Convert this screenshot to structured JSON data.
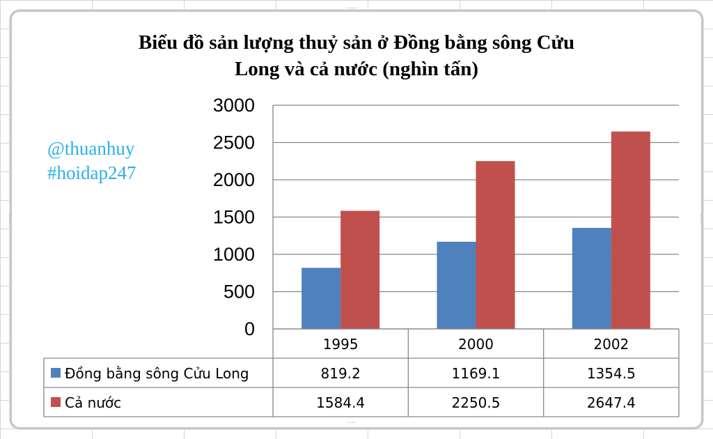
{
  "chart_data": {
    "type": "bar",
    "title": [
      "Biểu đồ sản lượng thuỷ sản ở Đồng bằng sông Cửu",
      "Long và cả nước  (nghìn  tấn)"
    ],
    "categories": [
      "1995",
      "2000",
      "2002"
    ],
    "series": [
      {
        "name": "Đồng bằng sông Cửu Long",
        "values": [
          819.2,
          1169.1,
          1354.5
        ],
        "color": "#4f81bd",
        "labels": [
          "819.2",
          "1169.1",
          "1354.5"
        ]
      },
      {
        "name": "Cả nước",
        "values": [
          1584.4,
          2250.5,
          2647.4
        ],
        "color": "#c0504d",
        "labels": [
          "1584.4",
          "2250.5",
          "2647.4"
        ]
      }
    ],
    "ylim": [
      0,
      3000
    ],
    "yticks": [
      "0",
      "500",
      "1000",
      "1500",
      "2000",
      "2500",
      "3000"
    ],
    "grid": true,
    "legend": "data-table"
  },
  "watermark": {
    "line1": "@thuanhuy",
    "line2": "#hoidap247"
  }
}
